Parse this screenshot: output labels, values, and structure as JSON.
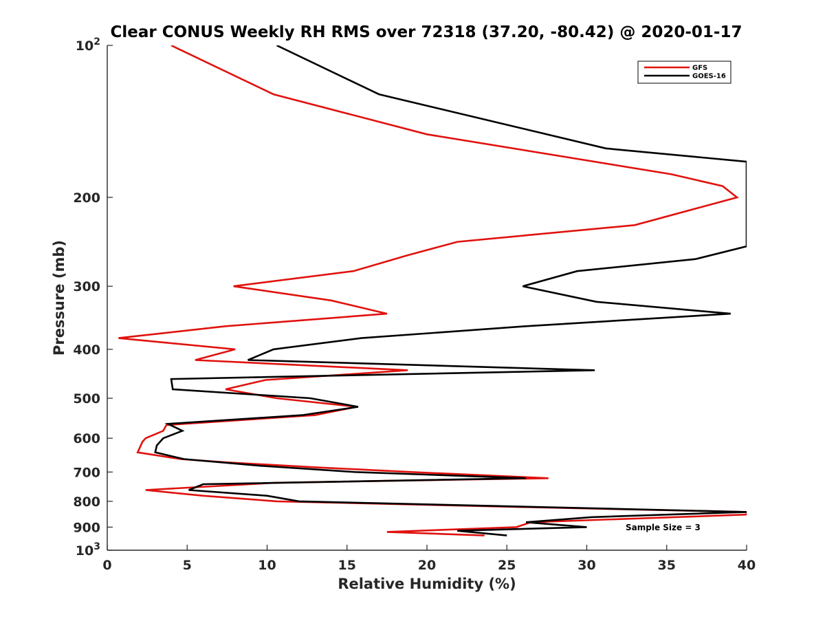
{
  "chart_data": {
    "type": "line",
    "title": "Clear CONUS Weekly RH RMS over 72318 (37.20, -80.42) @ 2020-01-17",
    "xlabel": "Relative Humidity (%)",
    "ylabel": "Pressure (mb)",
    "xlim": [
      0,
      40
    ],
    "ylim": [
      100,
      1000
    ],
    "y_scale": "log",
    "y_reversed": true,
    "grid": false,
    "legend_position": "top-right",
    "x_ticks": [
      {
        "value": 0,
        "label": "0"
      },
      {
        "value": 5,
        "label": "5"
      },
      {
        "value": 10,
        "label": "10"
      },
      {
        "value": 15,
        "label": "15"
      },
      {
        "value": 20,
        "label": "20"
      },
      {
        "value": 25,
        "label": "25"
      },
      {
        "value": 30,
        "label": "30"
      },
      {
        "value": 35,
        "label": "35"
      },
      {
        "value": 40,
        "label": "40"
      }
    ],
    "y_ticks": [
      {
        "value": 100,
        "base": "10",
        "exp": "2"
      },
      {
        "value": 200,
        "label": "200"
      },
      {
        "value": 300,
        "label": "300"
      },
      {
        "value": 400,
        "label": "400"
      },
      {
        "value": 500,
        "label": "500"
      },
      {
        "value": 600,
        "label": "600"
      },
      {
        "value": 700,
        "label": "700"
      },
      {
        "value": 800,
        "label": "800"
      },
      {
        "value": 900,
        "label": "900"
      },
      {
        "value": 1000,
        "base": "10",
        "exp": "3"
      }
    ],
    "annotation": "Sample Size = 3",
    "series": [
      {
        "name": "GFS",
        "color": "#e0120e",
        "points": [
          {
            "x": 4.0,
            "y": 100
          },
          {
            "x": 10.4,
            "y": 125
          },
          {
            "x": 20.0,
            "y": 150
          },
          {
            "x": 35.3,
            "y": 180
          },
          {
            "x": 38.5,
            "y": 190
          },
          {
            "x": 39.4,
            "y": 200
          },
          {
            "x": 33.0,
            "y": 227
          },
          {
            "x": 21.9,
            "y": 245
          },
          {
            "x": 18.7,
            "y": 261
          },
          {
            "x": 15.4,
            "y": 280
          },
          {
            "x": 7.9,
            "y": 300
          },
          {
            "x": 14.0,
            "y": 320
          },
          {
            "x": 17.5,
            "y": 340
          },
          {
            "x": 7.4,
            "y": 360
          },
          {
            "x": 0.7,
            "y": 380
          },
          {
            "x": 8.0,
            "y": 400
          },
          {
            "x": 5.5,
            "y": 420
          },
          {
            "x": 18.8,
            "y": 440
          },
          {
            "x": 9.9,
            "y": 460
          },
          {
            "x": 7.4,
            "y": 480
          },
          {
            "x": 10.6,
            "y": 500
          },
          {
            "x": 15.6,
            "y": 520
          },
          {
            "x": 13.0,
            "y": 540
          },
          {
            "x": 3.7,
            "y": 565
          },
          {
            "x": 3.5,
            "y": 580
          },
          {
            "x": 2.4,
            "y": 600
          },
          {
            "x": 2.2,
            "y": 610
          },
          {
            "x": 1.9,
            "y": 640
          },
          {
            "x": 4.6,
            "y": 660
          },
          {
            "x": 7.5,
            "y": 670
          },
          {
            "x": 13.0,
            "y": 685
          },
          {
            "x": 19.0,
            "y": 700
          },
          {
            "x": 27.6,
            "y": 720
          },
          {
            "x": 10.5,
            "y": 735
          },
          {
            "x": 2.4,
            "y": 760
          },
          {
            "x": 6.0,
            "y": 780
          },
          {
            "x": 10.6,
            "y": 800
          },
          {
            "x": 25.0,
            "y": 820
          },
          {
            "x": 40.0,
            "y": 840
          },
          {
            "x": 40.0,
            "y": 850
          },
          {
            "x": 26.5,
            "y": 880
          },
          {
            "x": 25.6,
            "y": 900
          },
          {
            "x": 17.5,
            "y": 920
          },
          {
            "x": 23.6,
            "y": 935
          }
        ]
      },
      {
        "name": "GOES-16",
        "color": "#000000",
        "points": [
          {
            "x": 10.6,
            "y": 100
          },
          {
            "x": 17.0,
            "y": 125
          },
          {
            "x": 31.2,
            "y": 160
          },
          {
            "x": 40.0,
            "y": 170
          },
          {
            "x": 40.0,
            "y": 250
          },
          {
            "x": 36.8,
            "y": 265
          },
          {
            "x": 29.4,
            "y": 280
          },
          {
            "x": 26.0,
            "y": 300
          },
          {
            "x": 30.6,
            "y": 322
          },
          {
            "x": 39.0,
            "y": 340
          },
          {
            "x": 26.2,
            "y": 360
          },
          {
            "x": 15.9,
            "y": 380
          },
          {
            "x": 10.4,
            "y": 400
          },
          {
            "x": 8.8,
            "y": 420
          },
          {
            "x": 30.5,
            "y": 440
          },
          {
            "x": 4.0,
            "y": 458
          },
          {
            "x": 4.1,
            "y": 480
          },
          {
            "x": 12.7,
            "y": 500
          },
          {
            "x": 15.7,
            "y": 520
          },
          {
            "x": 12.2,
            "y": 540
          },
          {
            "x": 3.8,
            "y": 562
          },
          {
            "x": 4.7,
            "y": 580
          },
          {
            "x": 3.5,
            "y": 600
          },
          {
            "x": 3.1,
            "y": 620
          },
          {
            "x": 3.0,
            "y": 640
          },
          {
            "x": 4.8,
            "y": 660
          },
          {
            "x": 9.5,
            "y": 680
          },
          {
            "x": 15.5,
            "y": 700
          },
          {
            "x": 26.2,
            "y": 720
          },
          {
            "x": 6.0,
            "y": 740
          },
          {
            "x": 5.1,
            "y": 760
          },
          {
            "x": 10.0,
            "y": 780
          },
          {
            "x": 12.0,
            "y": 800
          },
          {
            "x": 40.0,
            "y": 840
          },
          {
            "x": 30.3,
            "y": 860
          },
          {
            "x": 26.2,
            "y": 880
          },
          {
            "x": 30.0,
            "y": 900
          },
          {
            "x": 21.9,
            "y": 915
          },
          {
            "x": 25.0,
            "y": 935
          }
        ]
      }
    ]
  }
}
